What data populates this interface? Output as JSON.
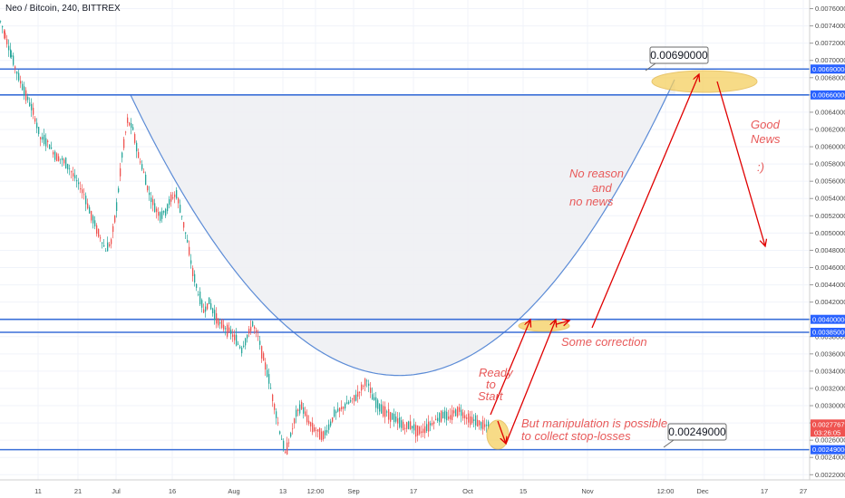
{
  "header": {
    "title": "Neo / Bitcoin, 240, BITTREX"
  },
  "colors": {
    "up": "#26a69a",
    "down": "#ef5350",
    "level_line": "#3a6fd8",
    "level_label_bg": "#2962ff",
    "current_label_bg": "#ef5350",
    "annotation": "#e85a5a",
    "arrow": "#e00000",
    "highlight": "#f5cf5f",
    "cup_line": "#5b8bd6",
    "cup_fill": "#eef0f3"
  },
  "chart_data": {
    "type": "candlestick",
    "title": "Neo / Bitcoin, 240, BITTREX",
    "ylim": [
      0.00214,
      0.0077
    ],
    "y_ticks": [
      "0.00760000",
      "0.00740000",
      "0.00720000",
      "0.00700000",
      "0.00680000",
      "0.00660000",
      "0.00640000",
      "0.00620000",
      "0.00600000",
      "0.00580000",
      "0.00560000",
      "0.00540000",
      "0.00520000",
      "0.00500000",
      "0.00480000",
      "0.00460000",
      "0.00440000",
      "0.00420000",
      "0.00400000",
      "0.00380000",
      "0.00360000",
      "0.00340000",
      "0.00320000",
      "0.00300000",
      "0.00280000",
      "0.00260000",
      "0.00240000",
      "0.00220000"
    ],
    "x_ticks": [
      "11",
      "21",
      "Jul",
      "16",
      "Aug",
      "13",
      "12:00",
      "Sep",
      "17",
      "Oct",
      "15",
      "Nov",
      "12:00",
      "Dec",
      "17",
      "27"
    ],
    "levels": [
      {
        "value": 0.0069,
        "label": "0.00690000"
      },
      {
        "value": 0.0066,
        "label": "0.00660000"
      },
      {
        "value": 0.004,
        "label": "0.00400000"
      },
      {
        "value": 0.00385,
        "label": "0.00385000"
      },
      {
        "value": 0.00249,
        "label": "0.00249000"
      }
    ],
    "current_price": {
      "value": 0.00277679,
      "label": "0.00277679",
      "countdown": "03:26:05"
    },
    "callouts": [
      {
        "text": "0.00690000"
      },
      {
        "text": "0.00249000"
      }
    ],
    "annotations": {
      "no_reason": [
        "No reason",
        "and",
        "no news"
      ],
      "good_news": [
        "Good",
        "News",
        ":)"
      ],
      "some_correction": "Some correction",
      "ready_to_start": [
        "Ready",
        "to",
        "Start"
      ],
      "manipulation": [
        "But manipulation is possible",
        "to collect stop-losses"
      ]
    },
    "price_path": [
      [
        0,
        0.00745
      ],
      [
        5,
        0.0073
      ],
      [
        12,
        0.00705
      ],
      [
        20,
        0.0068
      ],
      [
        28,
        0.0066
      ],
      [
        36,
        0.0064
      ],
      [
        44,
        0.0061
      ],
      [
        52,
        0.00605
      ],
      [
        60,
        0.0059
      ],
      [
        68,
        0.00585
      ],
      [
        76,
        0.00575
      ],
      [
        84,
        0.0056
      ],
      [
        92,
        0.00545
      ],
      [
        100,
        0.0052
      ],
      [
        108,
        0.005
      ],
      [
        116,
        0.0048
      ],
      [
        122,
        0.0049
      ],
      [
        128,
        0.0053
      ],
      [
        134,
        0.0059
      ],
      [
        140,
        0.0063
      ],
      [
        146,
        0.0062
      ],
      [
        152,
        0.0059
      ],
      [
        158,
        0.0057
      ],
      [
        164,
        0.00545
      ],
      [
        170,
        0.0053
      ],
      [
        176,
        0.0052
      ],
      [
        182,
        0.00525
      ],
      [
        188,
        0.0054
      ],
      [
        194,
        0.00545
      ],
      [
        200,
        0.0052
      ],
      [
        206,
        0.0049
      ],
      [
        212,
        0.00455
      ],
      [
        218,
        0.0043
      ],
      [
        224,
        0.0041
      ],
      [
        230,
        0.0042
      ],
      [
        236,
        0.00405
      ],
      [
        242,
        0.00395
      ],
      [
        248,
        0.0039
      ],
      [
        254,
        0.00385
      ],
      [
        260,
        0.00375
      ],
      [
        266,
        0.00365
      ],
      [
        272,
        0.0038
      ],
      [
        278,
        0.00395
      ],
      [
        284,
        0.0038
      ],
      [
        290,
        0.00355
      ],
      [
        296,
        0.0033
      ],
      [
        302,
        0.003
      ],
      [
        308,
        0.0027
      ],
      [
        314,
        0.00245
      ],
      [
        320,
        0.00265
      ],
      [
        326,
        0.0029
      ],
      [
        332,
        0.003
      ],
      [
        338,
        0.00285
      ],
      [
        344,
        0.00275
      ],
      [
        350,
        0.0027
      ],
      [
        356,
        0.00265
      ],
      [
        362,
        0.00275
      ],
      [
        368,
        0.0029
      ],
      [
        374,
        0.00295
      ],
      [
        380,
        0.003
      ],
      [
        386,
        0.00305
      ],
      [
        392,
        0.0031
      ],
      [
        398,
        0.0032
      ],
      [
        404,
        0.0033
      ],
      [
        410,
        0.0031
      ],
      [
        416,
        0.003
      ],
      [
        422,
        0.00295
      ],
      [
        428,
        0.0029
      ],
      [
        434,
        0.00285
      ],
      [
        440,
        0.0028
      ],
      [
        446,
        0.00275
      ],
      [
        452,
        0.00278
      ],
      [
        458,
        0.00272
      ],
      [
        464,
        0.0027
      ],
      [
        470,
        0.00275
      ],
      [
        476,
        0.0028
      ],
      [
        482,
        0.00285
      ],
      [
        488,
        0.0029
      ],
      [
        494,
        0.00285
      ],
      [
        500,
        0.00292
      ],
      [
        506,
        0.00295
      ],
      [
        512,
        0.00288
      ],
      [
        518,
        0.00284
      ],
      [
        524,
        0.00282
      ],
      [
        530,
        0.00278
      ],
      [
        536,
        0.00276
      ],
      [
        540,
        0.00278
      ]
    ]
  }
}
